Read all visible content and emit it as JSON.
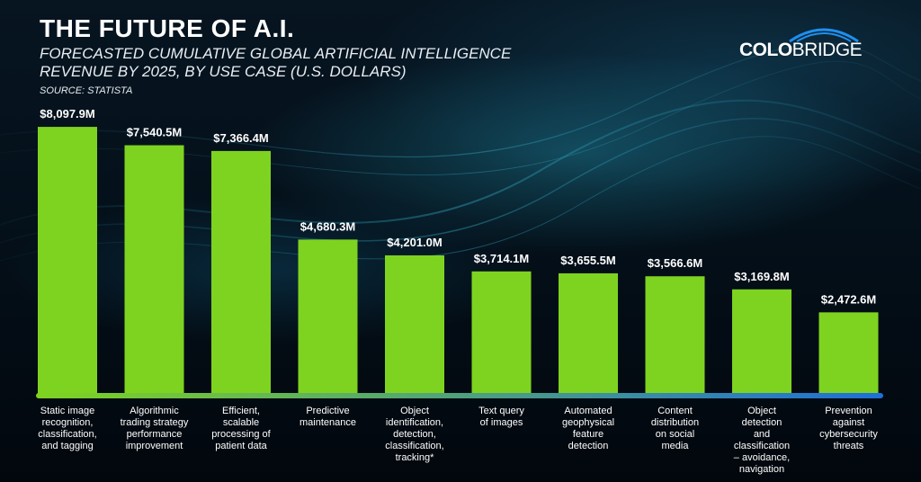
{
  "header": {
    "title": "THE FUTURE OF A.I.",
    "subtitle": "FORECASTED CUMULATIVE GLOBAL ARTIFICIAL INTELLIGENCE REVENUE BY 2025, BY USE CASE (U.S. DOLLARS)",
    "source": "SOURCE: STATISTA"
  },
  "logo": {
    "part1": "COLO",
    "part2": "BRIDGE"
  },
  "colors": {
    "bar": "#7ed321",
    "axis_start": "#7ed321",
    "axis_end": "#1e6fd9",
    "arc": "#1f8ff0"
  },
  "chart_data": {
    "type": "bar",
    "title": "THE FUTURE OF A.I.",
    "categories": [
      "Static image recognition, classification, and tagging",
      "Algorithmic trading strategy performance improvement",
      "Efficient, scalable processing of patient data",
      "Predictive maintenance",
      "Object identification, detection, classification, tracking*",
      "Text query of images",
      "Automated geophysical feature detection",
      "Content distribution on social media",
      "Object detection and classification – avoidance, navigation",
      "Prevention against cybersecurity threats"
    ],
    "category_lines": [
      [
        "Static image",
        "recognition,",
        "classification,",
        "and tagging"
      ],
      [
        "Algorithmic",
        "trading strategy",
        "performance",
        "improvement"
      ],
      [
        "Efficient,",
        "scalable",
        "processing of",
        "patient data"
      ],
      [
        "Predictive",
        "maintenance"
      ],
      [
        "Object",
        "identification,",
        "detection,",
        "classification,",
        "tracking*"
      ],
      [
        "Text query",
        "of images"
      ],
      [
        "Automated",
        "geophysical",
        "feature",
        "detection"
      ],
      [
        "Content",
        "distribution",
        "on social",
        "media"
      ],
      [
        "Object",
        "detection",
        "and",
        "classification",
        "– avoidance,",
        "navigation"
      ],
      [
        "Prevention",
        "against",
        "cybersecurity",
        "threats"
      ]
    ],
    "values": [
      8097.9,
      7540.5,
      7366.4,
      4680.3,
      4201.0,
      3714.1,
      3655.5,
      3566.6,
      3169.8,
      2472.6
    ],
    "value_labels": [
      "$8,097.9M",
      "$7,540.5M",
      "$7,366.4M",
      "$4,680.3M",
      "$4,201.0M",
      "$3,714.1M",
      "$3,655.5M",
      "$3,566.6M",
      "$3,169.8M",
      "$2,472.6M"
    ],
    "xlabel": "",
    "ylabel": "",
    "ylim": [
      0,
      10000
    ],
    "grid": false,
    "legend": "none"
  }
}
